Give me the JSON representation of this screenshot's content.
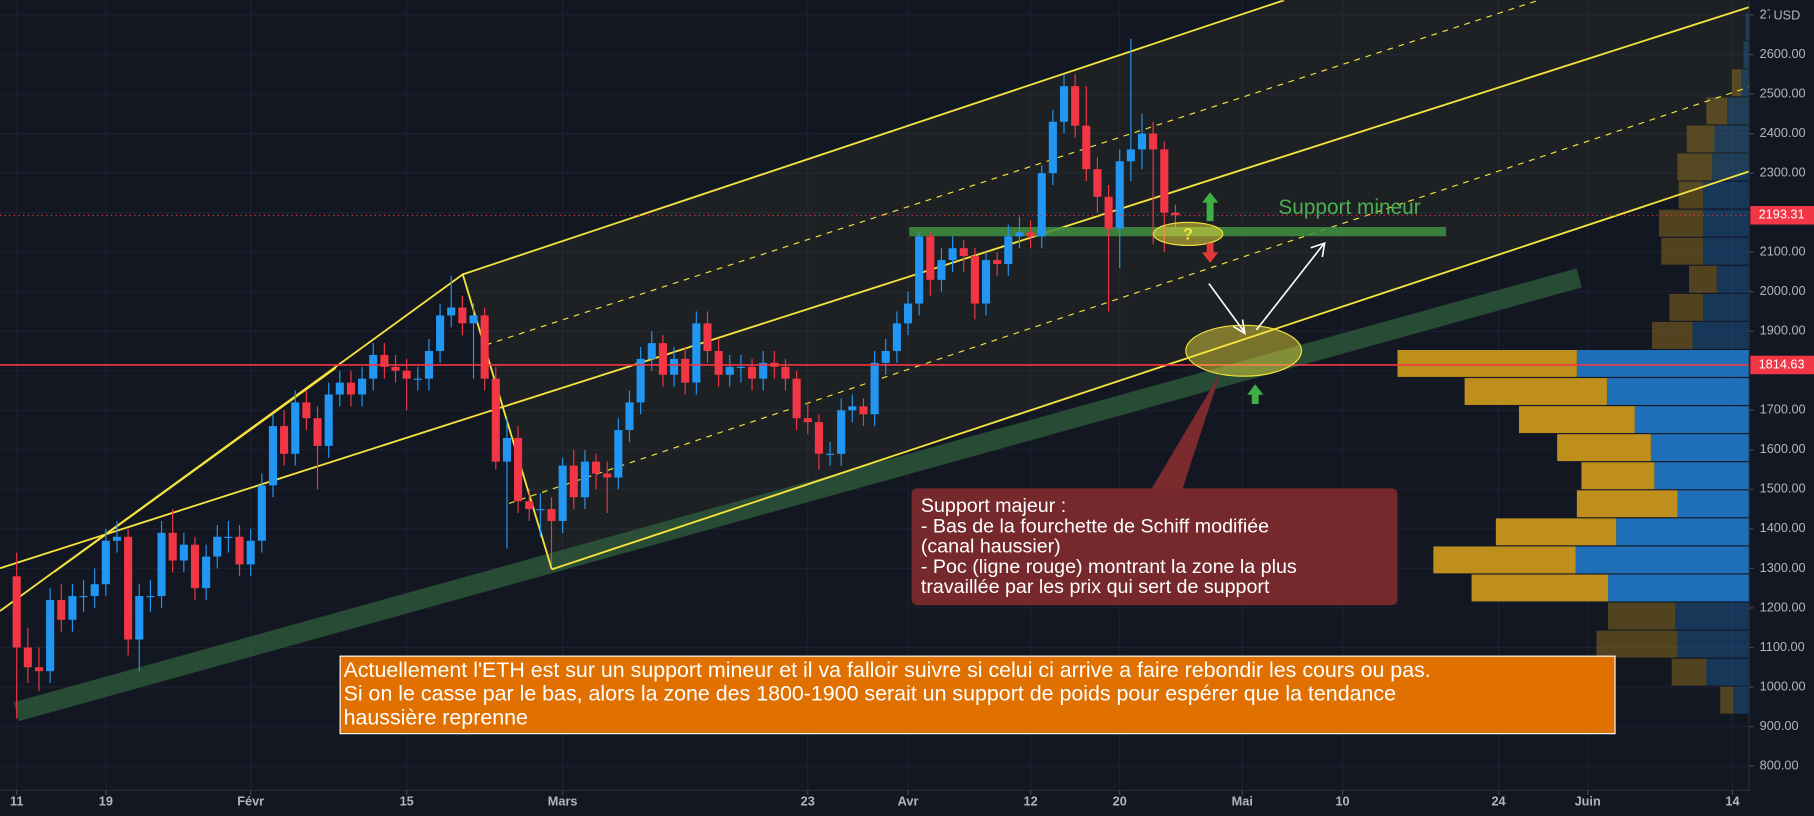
{
  "chart_data": {
    "type": "candlestick",
    "currency": "USD",
    "xlim": [
      -1.5,
      155.5
    ],
    "xticks": [
      {
        "value": 0,
        "label": "11"
      },
      {
        "value": 8,
        "label": "19"
      },
      {
        "value": 21,
        "label": "Févr"
      },
      {
        "value": 35,
        "label": "15"
      },
      {
        "value": 49,
        "label": "Mars"
      },
      {
        "value": 71,
        "label": "23"
      },
      {
        "value": 80,
        "label": "Avr"
      },
      {
        "value": 91,
        "label": "12"
      },
      {
        "value": 99,
        "label": "20"
      },
      {
        "value": 110,
        "label": "Mai"
      },
      {
        "value": 119,
        "label": "10"
      },
      {
        "value": 133,
        "label": "24"
      },
      {
        "value": 141,
        "label": "Juin"
      },
      {
        "value": 154,
        "label": "14"
      }
    ],
    "ylim": [
      738.5,
      2737.5
    ],
    "yticks": [
      {
        "value": 800,
        "label": "800.00"
      },
      {
        "value": 900,
        "label": "900.00"
      },
      {
        "value": 1000,
        "label": "1000.00"
      },
      {
        "value": 1100,
        "label": "1100.00"
      },
      {
        "value": 1200,
        "label": "1200.00"
      },
      {
        "value": 1300,
        "label": "1300.00"
      },
      {
        "value": 1400,
        "label": "1400.00"
      },
      {
        "value": 1500,
        "label": "1500.00"
      },
      {
        "value": 1600,
        "label": "1600.00"
      },
      {
        "value": 1700,
        "label": "1700.00"
      },
      {
        "value": 1800,
        "label": "1800.00"
      },
      {
        "value": 1900,
        "label": "1900.00"
      },
      {
        "value": 2000,
        "label": "2000.00"
      },
      {
        "value": 2100,
        "label": "2100.00"
      },
      {
        "value": 2200,
        "label": "2200.00"
      },
      {
        "value": 2300,
        "label": "2300.00"
      },
      {
        "value": 2400,
        "label": "2400.00"
      },
      {
        "value": 2500,
        "label": "2500.00"
      },
      {
        "value": 2600,
        "label": "2600.00"
      },
      {
        "value": 2700,
        "label": "2700.00"
      }
    ],
    "grid": true,
    "series": [
      {
        "up_color": "#2196f3",
        "down_color": "#f23645",
        "ohlc": [
          [
            1280,
            1340,
            920,
            1100
          ],
          [
            1100,
            1150,
            1010,
            1050
          ],
          [
            1050,
            1100,
            990,
            1040
          ],
          [
            1040,
            1250,
            1010,
            1220
          ],
          [
            1220,
            1260,
            1140,
            1170
          ],
          [
            1170,
            1260,
            1140,
            1230
          ],
          [
            1230,
            1270,
            1190,
            1230
          ],
          [
            1230,
            1300,
            1200,
            1260
          ],
          [
            1260,
            1400,
            1230,
            1370
          ],
          [
            1370,
            1420,
            1340,
            1380
          ],
          [
            1380,
            1400,
            1080,
            1120
          ],
          [
            1120,
            1260,
            1040,
            1230
          ],
          [
            1230,
            1270,
            1190,
            1230
          ],
          [
            1230,
            1420,
            1200,
            1390
          ],
          [
            1390,
            1450,
            1290,
            1320
          ],
          [
            1320,
            1390,
            1290,
            1360
          ],
          [
            1360,
            1380,
            1220,
            1250
          ],
          [
            1250,
            1360,
            1220,
            1330
          ],
          [
            1330,
            1410,
            1300,
            1380
          ],
          [
            1380,
            1420,
            1340,
            1380
          ],
          [
            1380,
            1410,
            1280,
            1310
          ],
          [
            1310,
            1400,
            1280,
            1370
          ],
          [
            1370,
            1540,
            1340,
            1510
          ],
          [
            1510,
            1690,
            1480,
            1660
          ],
          [
            1660,
            1700,
            1560,
            1590
          ],
          [
            1590,
            1750,
            1560,
            1720
          ],
          [
            1720,
            1750,
            1650,
            1680
          ],
          [
            1680,
            1710,
            1500,
            1610
          ],
          [
            1610,
            1770,
            1580,
            1740
          ],
          [
            1740,
            1800,
            1710,
            1770
          ],
          [
            1770,
            1800,
            1710,
            1740
          ],
          [
            1740,
            1810,
            1710,
            1780
          ],
          [
            1780,
            1870,
            1750,
            1840
          ],
          [
            1840,
            1870,
            1780,
            1810
          ],
          [
            1810,
            1840,
            1770,
            1800
          ],
          [
            1800,
            1830,
            1700,
            1780
          ],
          [
            1780,
            1810,
            1750,
            1780
          ],
          [
            1780,
            1880,
            1750,
            1850
          ],
          [
            1850,
            1970,
            1820,
            1940
          ],
          [
            1940,
            2040,
            1910,
            1960
          ],
          [
            1960,
            1990,
            1890,
            1920
          ],
          [
            1920,
            1970,
            1780,
            1940
          ],
          [
            1940,
            1960,
            1750,
            1780
          ],
          [
            1780,
            1810,
            1550,
            1570
          ],
          [
            1570,
            1680,
            1350,
            1630
          ],
          [
            1630,
            1660,
            1440,
            1470
          ],
          [
            1470,
            1500,
            1420,
            1450
          ],
          [
            1450,
            1490,
            1380,
            1450
          ],
          [
            1450,
            1480,
            1310,
            1420
          ],
          [
            1420,
            1580,
            1390,
            1560
          ],
          [
            1560,
            1600,
            1450,
            1480
          ],
          [
            1480,
            1600,
            1450,
            1570
          ],
          [
            1570,
            1590,
            1500,
            1540
          ],
          [
            1540,
            1570,
            1440,
            1530
          ],
          [
            1530,
            1680,
            1500,
            1650
          ],
          [
            1650,
            1750,
            1620,
            1720
          ],
          [
            1720,
            1860,
            1690,
            1830
          ],
          [
            1830,
            1900,
            1800,
            1870
          ],
          [
            1870,
            1890,
            1760,
            1790
          ],
          [
            1790,
            1860,
            1760,
            1830
          ],
          [
            1830,
            1860,
            1740,
            1770
          ],
          [
            1770,
            1950,
            1740,
            1920
          ],
          [
            1920,
            1950,
            1820,
            1850
          ],
          [
            1850,
            1880,
            1760,
            1790
          ],
          [
            1790,
            1840,
            1760,
            1810
          ],
          [
            1810,
            1840,
            1770,
            1810
          ],
          [
            1810,
            1830,
            1750,
            1780
          ],
          [
            1780,
            1850,
            1750,
            1820
          ],
          [
            1820,
            1850,
            1780,
            1810
          ],
          [
            1810,
            1830,
            1750,
            1780
          ],
          [
            1780,
            1800,
            1650,
            1680
          ],
          [
            1680,
            1720,
            1640,
            1670
          ],
          [
            1670,
            1690,
            1550,
            1590
          ],
          [
            1590,
            1620,
            1560,
            1590
          ],
          [
            1590,
            1730,
            1560,
            1700
          ],
          [
            1700,
            1740,
            1670,
            1710
          ],
          [
            1710,
            1730,
            1660,
            1690
          ],
          [
            1690,
            1850,
            1660,
            1820
          ],
          [
            1820,
            1880,
            1790,
            1850
          ],
          [
            1850,
            1950,
            1820,
            1920
          ],
          [
            1920,
            2000,
            1890,
            1970
          ],
          [
            1970,
            2150,
            1940,
            2140
          ],
          [
            2140,
            2150,
            1990,
            2030
          ],
          [
            2030,
            2110,
            2000,
            2080
          ],
          [
            2080,
            2140,
            2050,
            2110
          ],
          [
            2110,
            2130,
            2050,
            2090
          ],
          [
            2090,
            2110,
            1930,
            1970
          ],
          [
            1970,
            2100,
            1940,
            2080
          ],
          [
            2080,
            2100,
            2040,
            2070
          ],
          [
            2070,
            2170,
            2040,
            2140
          ],
          [
            2140,
            2190,
            2110,
            2150
          ],
          [
            2150,
            2180,
            2110,
            2140
          ],
          [
            2140,
            2320,
            2110,
            2300
          ],
          [
            2300,
            2460,
            2270,
            2430
          ],
          [
            2430,
            2550,
            2400,
            2520
          ],
          [
            2520,
            2550,
            2390,
            2420
          ],
          [
            2420,
            2520,
            2280,
            2310
          ],
          [
            2310,
            2340,
            2200,
            2240
          ],
          [
            2240,
            2270,
            1950,
            2160
          ],
          [
            2160,
            2360,
            2060,
            2330
          ],
          [
            2330,
            2640,
            2280,
            2360
          ],
          [
            2360,
            2450,
            2310,
            2400
          ],
          [
            2400,
            2430,
            2120,
            2360
          ],
          [
            2360,
            2380,
            2100,
            2200
          ],
          [
            2200,
            2220,
            2160,
            2193.31
          ]
        ]
      }
    ],
    "last_price": 2193.31,
    "poc_price": 1814.63,
    "volume_profile": {
      "bins": [
        931,
        1002,
        1073,
        1144,
        1215,
        1286,
        1357,
        1428,
        1499,
        1570,
        1641,
        1712,
        1783,
        1854,
        1925,
        1996,
        2067,
        2138,
        2209,
        2280,
        2351,
        2422,
        2493,
        2564,
        2635,
        2706
      ],
      "sell": [
        11,
        30,
        70,
        58,
        118,
        123,
        104,
        87,
        63,
        81,
        100,
        123,
        155,
        35,
        29,
        24,
        36,
        38,
        21,
        30,
        24,
        18,
        8,
        0,
        0
      ],
      "buy": [
        14,
        37,
        62,
        64,
        122,
        150,
        115,
        62,
        82,
        85,
        99,
        123,
        149,
        49,
        40,
        28,
        40,
        40,
        40,
        32,
        30,
        19,
        7,
        5,
        3
      ],
      "value_area": [
        1215,
        1854
      ],
      "sell_color": "#c8961e",
      "buy_color": "#1f74c0"
    },
    "annotations": {
      "support_minor": "Support mineur",
      "question": "?",
      "major_box": [
        "Support majeur :",
        "- Bas de la fourchette de Schiff modifiée",
        "(canal haussier)",
        "- Poc (ligne rouge) montrant la zone la plus",
        "travaillée par les prix qui sert de support"
      ],
      "note": [
        "Actuellement l'ETH est sur un support mineur et il va falloir suivre si celui ci arrive a faire rebondir les cours ou pas.",
        "Si on le casse par le bas, alors la zone des 1800-1900 serait un support de poids pour espérer que la tendance",
        "haussière reprenne"
      ]
    }
  }
}
